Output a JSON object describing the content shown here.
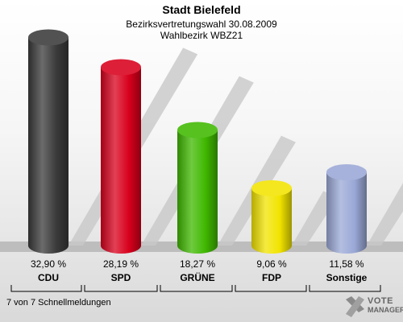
{
  "header": {
    "title": "Stadt Bielefeld",
    "subtitle1": "Bezirksvertretungswahl 30.08.2009",
    "subtitle2": "Wahlbezirk WBZ21"
  },
  "footer": {
    "text": "7 von 7 Schnellmeldungen"
  },
  "logo": {
    "line1": "VOTE",
    "line2": "MANAGER",
    "icon": "x-ballot-icon"
  },
  "chart_data": {
    "type": "bar",
    "categories": [
      "CDU",
      "SPD",
      "GRÜNE",
      "FDP",
      "Sonstige"
    ],
    "values": [
      32.9,
      28.19,
      18.27,
      9.06,
      11.58
    ],
    "value_labels": [
      "32,90 %",
      "28,19 %",
      "18,27 %",
      "9,06 %",
      "11,58 %"
    ],
    "colors": [
      "#3a3a3a",
      "#d8001c",
      "#3fb800",
      "#f2e400",
      "#9aa8d6"
    ],
    "ylim": [
      0,
      35
    ],
    "grid": false
  }
}
